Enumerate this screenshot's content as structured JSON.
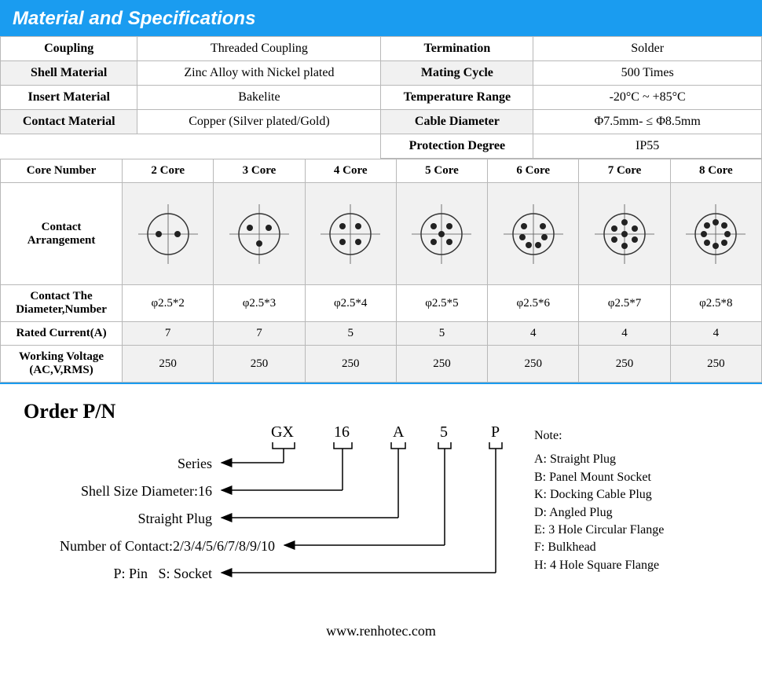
{
  "title": "Material and Specifications",
  "specs": {
    "left": [
      {
        "label": "Coupling",
        "value": "Threaded Coupling",
        "shade": false
      },
      {
        "label": "Shell Material",
        "value": "Zinc Alloy with Nickel plated",
        "shade": true
      },
      {
        "label": "Insert Material",
        "value": "Bakelite",
        "shade": false
      },
      {
        "label": "Contact Material",
        "value": "Copper (Silver plated/Gold)",
        "shade": true
      }
    ],
    "right": [
      {
        "label": "Termination",
        "value": "Solder",
        "shade": false
      },
      {
        "label": "Mating Cycle",
        "value": "500 Times",
        "shade": true
      },
      {
        "label": "Temperature Range",
        "value": "-20°C ~ +85°C",
        "shade": false
      },
      {
        "label": "Cable Diameter",
        "value": "Φ7.5mm- ≤ Φ8.5mm",
        "shade": true
      },
      {
        "label": "Protection Degree",
        "value": "IP55",
        "shade": false
      }
    ]
  },
  "coreHeaders": {
    "rowhead": "Core Number",
    "c2": "2 Core",
    "c3": "3 Core",
    "c4": "4 Core",
    "c5": "5 Core",
    "c6": "6 Core",
    "c7": "7 Core",
    "c8": "8 Core"
  },
  "arrangementLabel": "Contact Arrangement",
  "diamLabel": "Contact The Diameter,Number",
  "ratedLabel": "Rated Current(A)",
  "voltLabel": "Working Voltage (AC,V,RMS)",
  "diam": {
    "c2": "φ2.5*2",
    "c3": "φ2.5*3",
    "c4": "φ2.5*4",
    "c5": "φ2.5*5",
    "c6": "φ2.5*6",
    "c7": "φ2.5*7",
    "c8": "φ2.5*8"
  },
  "rated": {
    "c2": "7",
    "c3": "7",
    "c4": "5",
    "c5": "5",
    "c6": "4",
    "c7": "4",
    "c8": "4"
  },
  "volt": {
    "c2": "250",
    "c3": "250",
    "c4": "250",
    "c5": "250",
    "c6": "250",
    "c7": "250",
    "c8": "250"
  },
  "pinLayouts": {
    "c2": [
      [
        -12,
        0
      ],
      [
        12,
        0
      ]
    ],
    "c3": [
      [
        -12,
        -8
      ],
      [
        12,
        -8
      ],
      [
        0,
        12
      ]
    ],
    "c4": [
      [
        -10,
        -10
      ],
      [
        10,
        -10
      ],
      [
        -10,
        10
      ],
      [
        10,
        10
      ]
    ],
    "c5": [
      [
        -10,
        -10
      ],
      [
        10,
        -10
      ],
      [
        -10,
        10
      ],
      [
        10,
        10
      ],
      [
        0,
        0
      ]
    ],
    "c6": [
      [
        -12,
        -10
      ],
      [
        12,
        -10
      ],
      [
        -14,
        4
      ],
      [
        14,
        4
      ],
      [
        -6,
        14
      ],
      [
        6,
        14
      ]
    ],
    "c7": [
      [
        0,
        -15
      ],
      [
        -13,
        -7
      ],
      [
        13,
        -7
      ],
      [
        -13,
        7
      ],
      [
        13,
        7
      ],
      [
        0,
        15
      ],
      [
        0,
        0
      ]
    ],
    "c8": [
      [
        0,
        -15
      ],
      [
        -11,
        -11
      ],
      [
        11,
        -11
      ],
      [
        -15,
        0
      ],
      [
        15,
        0
      ],
      [
        -11,
        11
      ],
      [
        11,
        11
      ],
      [
        0,
        15
      ]
    ]
  },
  "order": {
    "title": "Order P/N",
    "codes": {
      "c1": "GX",
      "c2": "16",
      "c3": "A",
      "c4": "5",
      "c5": "P"
    },
    "labels": {
      "l1": "Series",
      "l2": "Shell Size Diameter:16",
      "l3": "Straight Plug",
      "l4": "Number of Contact:2/3/4/5/6/7/8/9/10",
      "l5": "P: Pin   S: Socket"
    },
    "noteTitle": "Note:",
    "notes": [
      "A: Straight Plug",
      "B: Panel Mount Socket",
      "K: Docking Cable Plug",
      "D: Angled Plug",
      "E: 3 Hole Circular Flange",
      "F: Bulkhead",
      "H: 4 Hole Square Flange"
    ]
  },
  "footer": "www.renhotec.com"
}
